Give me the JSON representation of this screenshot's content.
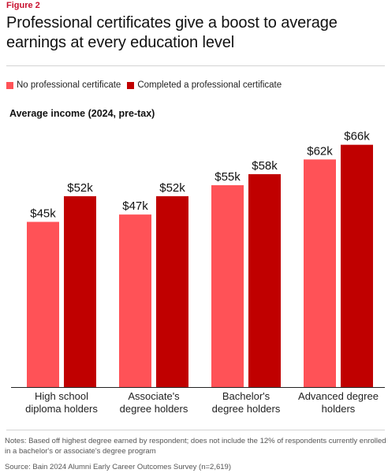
{
  "figure_label": "Figure 2",
  "title": "Professional certificates give a boost to average earnings at every education level",
  "notes": "Notes: Based off highest degree earned by respondent; does not include the 12% of respondents currently enrolled in a bachelor's or associate's degree program",
  "source": "Source: Bain 2024 Alumni Early Career Outcomes Survey (n=2,619)",
  "colors": {
    "accent": "#c8102e",
    "series_1": "#ff5257",
    "series_2": "#c00000"
  },
  "chart_data": {
    "type": "bar",
    "ylabel": "Average income (2024, pre-tax)",
    "categories": [
      [
        "High school",
        "diploma holders"
      ],
      [
        "Associate's",
        "degree holders"
      ],
      [
        "Bachelor's",
        "degree holders"
      ],
      [
        "Advanced degree",
        "holders"
      ]
    ],
    "series": [
      {
        "name": "No professional certificate",
        "values": [
          45,
          47,
          55,
          62
        ],
        "labels": [
          "$45k",
          "$47k",
          "$55k",
          "$62k"
        ],
        "color": "#ff5257"
      },
      {
        "name": "Completed a professional certificate",
        "values": [
          52,
          52,
          58,
          66
        ],
        "labels": [
          "$52k",
          "$52k",
          "$58k",
          "$66k"
        ],
        "color": "#c00000"
      }
    ],
    "ylim": [
      0,
      67
    ],
    "grid": false,
    "legend_position": "top-left"
  }
}
